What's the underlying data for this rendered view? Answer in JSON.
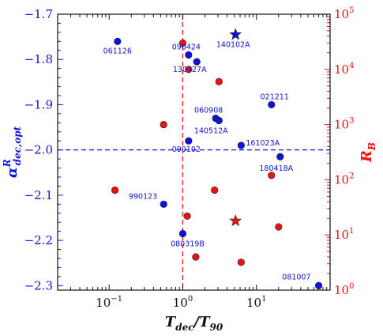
{
  "chart_data": {
    "type": "scatter",
    "xlabel": "T_dec/T_90",
    "xlabel_parts": {
      "main": "T",
      "sub1": "dec",
      "mid": "/T",
      "sub2": "90"
    },
    "ylabel_left": "α^R_dec,opt",
    "ylabel_left_parts": {
      "main": "α",
      "sup": "R",
      "sub": "dec,opt"
    },
    "ylabel_right": "R_B",
    "ylabel_right_parts": {
      "main": "R",
      "sub": "B"
    },
    "x_scale": "log",
    "xlim": [
      0.02,
      100
    ],
    "ylim_left": [
      -2.31,
      -1.7
    ],
    "ylim_right": [
      1,
      100000
    ],
    "y_right_scale": "log",
    "x_ticks": [
      {
        "value": 0.1,
        "base": "10",
        "exp": "−1"
      },
      {
        "value": 1,
        "base": "10",
        "exp": "0"
      },
      {
        "value": 10,
        "base": "10",
        "exp": "1"
      }
    ],
    "y_left_ticks": [
      {
        "value": -1.7,
        "label": "−1.7"
      },
      {
        "value": -1.8,
        "label": "−1.8"
      },
      {
        "value": -1.9,
        "label": "−1.9"
      },
      {
        "value": -2.0,
        "label": "−2.0"
      },
      {
        "value": -2.1,
        "label": "−2.1"
      },
      {
        "value": -2.2,
        "label": "−2.2"
      },
      {
        "value": -2.3,
        "label": "−2.3"
      }
    ],
    "y_right_ticks": [
      {
        "value": 1,
        "base": "10",
        "exp": "0"
      },
      {
        "value": 10,
        "base": "10",
        "exp": "1"
      },
      {
        "value": 100,
        "base": "10",
        "exp": "2"
      },
      {
        "value": 1000,
        "base": "10",
        "exp": "3"
      },
      {
        "value": 10000,
        "base": "10",
        "exp": "4"
      },
      {
        "value": 100000,
        "base": "10",
        "exp": "5"
      }
    ],
    "reference_lines": {
      "vertical_x": 1.0,
      "horizontal_y": -2.0
    },
    "colors": {
      "left": "#1010e0",
      "right": "#ee1111",
      "marker_edge": "#222222",
      "reference": "#1010e0"
    },
    "alpha_points": [
      {
        "grb": "061126",
        "x": 0.13,
        "y": -1.76
      },
      {
        "grb": "090424",
        "x": 1.2,
        "y": -1.79
      },
      {
        "grb": "130427A",
        "x": 1.55,
        "y": -1.805
      },
      {
        "grb": "021211",
        "x": 16,
        "y": -1.9
      },
      {
        "grb": "060908",
        "x": 2.8,
        "y": -1.93
      },
      {
        "grb": "140512A",
        "x": 3.1,
        "y": -1.935
      },
      {
        "grb": "090102",
        "x": 1.2,
        "y": -1.98
      },
      {
        "grb": "161023A",
        "x": 6.2,
        "y": -1.99
      },
      {
        "grb": "180418A",
        "x": 21,
        "y": -2.015
      },
      {
        "grb": "990123",
        "x": 0.55,
        "y": -2.12
      },
      {
        "grb": "080319B",
        "x": 1.0,
        "y": -2.185
      },
      {
        "grb": "081007",
        "x": 70,
        "y": -2.3
      }
    ],
    "alpha_star": {
      "grb": "140102A",
      "x": 5.2,
      "y": -1.745
    },
    "rb_points": [
      {
        "x": 1.0,
        "y": 30000
      },
      {
        "x": 1.2,
        "y": 10000
      },
      {
        "x": 3.1,
        "y": 6000
      },
      {
        "x": 0.55,
        "y": 1000
      },
      {
        "x": 16,
        "y": 120
      },
      {
        "x": 0.12,
        "y": 65
      },
      {
        "x": 2.7,
        "y": 65
      },
      {
        "x": 1.15,
        "y": 22
      },
      {
        "x": 20,
        "y": 14
      },
      {
        "x": 1.5,
        "y": 4
      },
      {
        "x": 6.2,
        "y": 3.2
      }
    ],
    "rb_star": {
      "x": 5.2,
      "y": 18
    }
  }
}
